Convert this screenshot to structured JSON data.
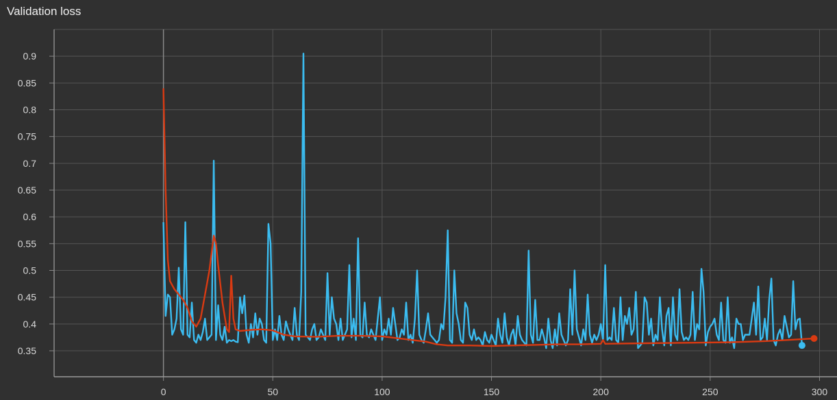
{
  "chart_data": {
    "type": "line",
    "title": "Validation loss",
    "xlabel": "",
    "ylabel": "",
    "xlim": [
      -50,
      308
    ],
    "ylim": [
      0.3015,
      0.95
    ],
    "grid": true,
    "x_ticks": [
      0,
      50,
      100,
      150,
      200,
      250,
      300
    ],
    "x_tick_labels": [
      "0",
      "50",
      "100",
      "150",
      "200",
      "250",
      "300"
    ],
    "y_ticks": [
      0.35,
      0.4,
      0.45,
      0.5,
      0.55,
      0.6,
      0.65,
      0.7,
      0.75,
      0.8,
      0.85,
      0.9
    ],
    "y_tick_labels": [
      "0.35",
      "0.4",
      "0.45",
      "0.5",
      "0.55",
      "0.6",
      "0.65",
      "0.7",
      "0.75",
      "0.8",
      "0.85",
      "0.9"
    ],
    "colors": {
      "raw": "#3bbcf0",
      "smoothed": "#d93a12",
      "background": "#303030",
      "grid": "#555555"
    },
    "series": [
      {
        "x_start": 0,
        "x_step": 1,
        "values": [
          0.59,
          0.415,
          0.455,
          0.45,
          0.38,
          0.39,
          0.41,
          0.505,
          0.39,
          0.38,
          0.59,
          0.38,
          0.375,
          0.44,
          0.37,
          0.365,
          0.38,
          0.37,
          0.385,
          0.41,
          0.37,
          0.375,
          0.38,
          0.705,
          0.37,
          0.435,
          0.38,
          0.37,
          0.395,
          0.365,
          0.37,
          0.368,
          0.37,
          0.367,
          0.366,
          0.45,
          0.42,
          0.453,
          0.38,
          0.365,
          0.4,
          0.375,
          0.42,
          0.38,
          0.41,
          0.4,
          0.37,
          0.365,
          0.587,
          0.55,
          0.37,
          0.39,
          0.37,
          0.415,
          0.38,
          0.37,
          0.405,
          0.39,
          0.38,
          0.37,
          0.43,
          0.38,
          0.37,
          0.46,
          0.905,
          0.38,
          0.375,
          0.37,
          0.39,
          0.4,
          0.37,
          0.375,
          0.39,
          0.38,
          0.37,
          0.495,
          0.38,
          0.45,
          0.41,
          0.4,
          0.37,
          0.41,
          0.37,
          0.38,
          0.39,
          0.51,
          0.375,
          0.41,
          0.37,
          0.56,
          0.38,
          0.375,
          0.44,
          0.38,
          0.375,
          0.39,
          0.38,
          0.37,
          0.41,
          0.45,
          0.37,
          0.39,
          0.38,
          0.41,
          0.38,
          0.43,
          0.4,
          0.37,
          0.375,
          0.39,
          0.38,
          0.44,
          0.37,
          0.38,
          0.365,
          0.41,
          0.5,
          0.38,
          0.37,
          0.365,
          0.39,
          0.42,
          0.38,
          0.375,
          0.37,
          0.365,
          0.37,
          0.4,
          0.39,
          0.45,
          0.575,
          0.37,
          0.365,
          0.5,
          0.42,
          0.4,
          0.37,
          0.365,
          0.44,
          0.43,
          0.38,
          0.37,
          0.39,
          0.37,
          0.375,
          0.37,
          0.36,
          0.385,
          0.37,
          0.365,
          0.38,
          0.37,
          0.36,
          0.41,
          0.38,
          0.365,
          0.42,
          0.375,
          0.36,
          0.38,
          0.39,
          0.36,
          0.415,
          0.38,
          0.37,
          0.365,
          0.36,
          0.537,
          0.38,
          0.365,
          0.445,
          0.37,
          0.37,
          0.39,
          0.375,
          0.355,
          0.41,
          0.37,
          0.355,
          0.39,
          0.36,
          0.42,
          0.38,
          0.37,
          0.36,
          0.37,
          0.465,
          0.38,
          0.5,
          0.39,
          0.375,
          0.36,
          0.39,
          0.37,
          0.455,
          0.38,
          0.365,
          0.38,
          0.37,
          0.38,
          0.4,
          0.37,
          0.51,
          0.37,
          0.375,
          0.37,
          0.43,
          0.37,
          0.365,
          0.45,
          0.37,
          0.415,
          0.4,
          0.43,
          0.38,
          0.39,
          0.46,
          0.355,
          0.36,
          0.365,
          0.45,
          0.44,
          0.38,
          0.41,
          0.36,
          0.38,
          0.37,
          0.45,
          0.39,
          0.36,
          0.415,
          0.43,
          0.36,
          0.45,
          0.38,
          0.37,
          0.465,
          0.385,
          0.37,
          0.375,
          0.37,
          0.38,
          0.46,
          0.37,
          0.4,
          0.39,
          0.503,
          0.46,
          0.36,
          0.385,
          0.395,
          0.4,
          0.41,
          0.38,
          0.37,
          0.44,
          0.37,
          0.365,
          0.45,
          0.365,
          0.375,
          0.355,
          0.41,
          0.4,
          0.4,
          0.37,
          0.38,
          0.38,
          0.38,
          0.41,
          0.44,
          0.38,
          0.47,
          0.37,
          0.375,
          0.41,
          0.37,
          0.445,
          0.485,
          0.37,
          0.36,
          0.38,
          0.39,
          0.37,
          0.415,
          0.395,
          0.375,
          0.38,
          0.48,
          0.39,
          0.408,
          0.41,
          0.36
        ]
      },
      {
        "points": [
          [
            0,
            0.84
          ],
          [
            1,
            0.65
          ],
          [
            2,
            0.52
          ],
          [
            3,
            0.48
          ],
          [
            5,
            0.465
          ],
          [
            7,
            0.455
          ],
          [
            9,
            0.445
          ],
          [
            11,
            0.43
          ],
          [
            13,
            0.405
          ],
          [
            15,
            0.395
          ],
          [
            17,
            0.41
          ],
          [
            19,
            0.455
          ],
          [
            21,
            0.5
          ],
          [
            23,
            0.565
          ],
          [
            24,
            0.55
          ],
          [
            25,
            0.51
          ],
          [
            27,
            0.44
          ],
          [
            29,
            0.39
          ],
          [
            30,
            0.385
          ],
          [
            31,
            0.49
          ],
          [
            32,
            0.41
          ],
          [
            33,
            0.39
          ],
          [
            35,
            0.387
          ],
          [
            40,
            0.389
          ],
          [
            45,
            0.39
          ],
          [
            50,
            0.388
          ],
          [
            55,
            0.38
          ],
          [
            60,
            0.377
          ],
          [
            70,
            0.376
          ],
          [
            80,
            0.378
          ],
          [
            90,
            0.378
          ],
          [
            100,
            0.377
          ],
          [
            110,
            0.372
          ],
          [
            120,
            0.367
          ],
          [
            125,
            0.362
          ],
          [
            130,
            0.36
          ],
          [
            140,
            0.36
          ],
          [
            150,
            0.359
          ],
          [
            160,
            0.36
          ],
          [
            170,
            0.361
          ],
          [
            180,
            0.362
          ],
          [
            190,
            0.362
          ],
          [
            200,
            0.363
          ],
          [
            201,
            0.37
          ],
          [
            202,
            0.363
          ],
          [
            220,
            0.364
          ],
          [
            240,
            0.365
          ],
          [
            260,
            0.366
          ],
          [
            275,
            0.368
          ],
          [
            285,
            0.37
          ],
          [
            297.5,
            0.373
          ]
        ]
      }
    ]
  }
}
